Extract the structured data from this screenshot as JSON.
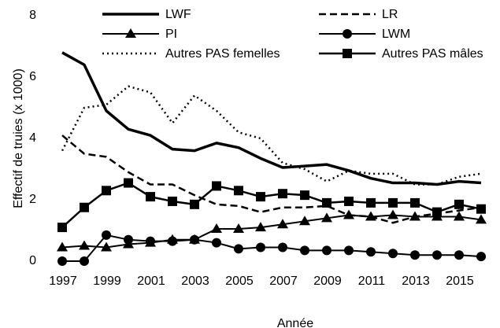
{
  "chart_data": {
    "type": "line",
    "x_label": "Année",
    "y_label": "Effectif de truies (x 1000)",
    "x": [
      1997,
      1998,
      1999,
      2000,
      2001,
      2002,
      2003,
      2004,
      2005,
      2006,
      2007,
      2008,
      2009,
      2010,
      2011,
      2012,
      2013,
      2014,
      2015,
      2016
    ],
    "xlim": [
      1997,
      2016
    ],
    "xticks": [
      1997,
      1999,
      2001,
      2003,
      2005,
      2007,
      2009,
      2011,
      2013,
      2015
    ],
    "ylim": [
      0,
      8
    ],
    "yticks": [
      0,
      2,
      4,
      6,
      8
    ],
    "grid": false,
    "legend": "top",
    "series": [
      {
        "name": "LWF",
        "color": "#000000",
        "dash": "solid",
        "width": 3.5,
        "marker": "none",
        "values": [
          6.8,
          6.4,
          4.9,
          4.3,
          4.1,
          3.65,
          3.6,
          3.85,
          3.7,
          3.35,
          3.05,
          3.1,
          3.15,
          2.95,
          2.7,
          2.55,
          2.55,
          2.5,
          2.6,
          2.55
        ]
      },
      {
        "name": "LR",
        "color": "#000000",
        "dash": "dashed",
        "width": 2.5,
        "marker": "none",
        "values": [
          4.1,
          3.5,
          3.4,
          2.9,
          2.5,
          2.5,
          2.15,
          1.85,
          1.8,
          1.6,
          1.75,
          1.75,
          1.8,
          1.5,
          1.45,
          1.25,
          1.45,
          1.55,
          1.65,
          1.75
        ]
      },
      {
        "name": "PI",
        "color": "#000000",
        "dash": "solid",
        "width": 2,
        "marker": "triangle",
        "values": [
          0.45,
          0.5,
          0.45,
          0.55,
          0.6,
          0.7,
          0.7,
          1.05,
          1.05,
          1.1,
          1.2,
          1.3,
          1.4,
          1.5,
          1.45,
          1.5,
          1.45,
          1.45,
          1.45,
          1.35
        ]
      },
      {
        "name": "LWM",
        "color": "#000000",
        "dash": "solid",
        "width": 2,
        "marker": "circle",
        "values": [
          0,
          0,
          0.85,
          0.7,
          0.65,
          0.65,
          0.7,
          0.6,
          0.4,
          0.45,
          0.45,
          0.35,
          0.35,
          0.35,
          0.3,
          0.25,
          0.2,
          0.2,
          0.2,
          0.15
        ]
      },
      {
        "name": "Autres PAS femelles",
        "color": "#000000",
        "dash": "dotted",
        "width": 2.5,
        "marker": "none",
        "values": [
          3.6,
          5.0,
          5.1,
          5.7,
          5.5,
          4.5,
          5.4,
          4.9,
          4.2,
          4.0,
          3.2,
          3.0,
          2.6,
          2.95,
          2.85,
          2.85,
          2.5,
          2.5,
          2.75,
          2.85
        ]
      },
      {
        "name": "Autres PAS mâles",
        "color": "#000000",
        "dash": "solid",
        "width": 2.5,
        "marker": "square",
        "values": [
          1.1,
          1.75,
          2.3,
          2.55,
          2.1,
          1.95,
          1.85,
          2.45,
          2.3,
          2.1,
          2.2,
          2.15,
          1.9,
          1.95,
          1.9,
          1.9,
          1.9,
          1.6,
          1.85,
          1.7
        ]
      }
    ]
  }
}
